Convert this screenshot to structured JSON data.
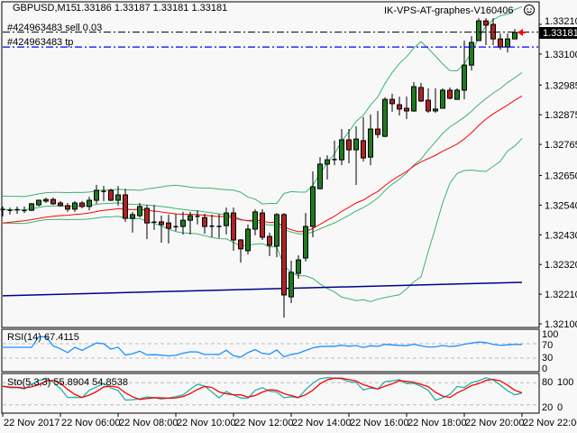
{
  "header": {
    "symbol": "GBPUSD,M15",
    "ohlc": "1.33186 1.33187 1.33181 1.33181",
    "expert": "IK-VPS-AT-graphes-V160406",
    "expert_icon": "smiley-icon"
  },
  "orders": {
    "sell_label": "#424963483 sell 0.03",
    "sell_price": 1.33181,
    "tp_label": "#424963483 tp",
    "tp_price": 1.33126
  },
  "current_price": "1.33181",
  "colors": {
    "background": "#f8f8f8",
    "bull": "#1f7a1f",
    "bear": "#b22222",
    "bands": "#3cb371",
    "ma_fast": "#ff0000",
    "ma_long": "#00008b",
    "rsi": "#1e90ff",
    "stoch_main": "#20b2aa",
    "stoch_signal": "#ff0000",
    "tp_line": "#0000ff"
  },
  "price_axis": [
    "1.33210",
    "1.33100",
    "1.32985",
    "1.32875",
    "1.32765",
    "1.32650",
    "1.32540",
    "1.32430",
    "1.32320",
    "1.32210",
    "1.32100"
  ],
  "time_axis": [
    "22 Nov 2017",
    "22 Nov 06:00",
    "22 Nov 08:00",
    "22 Nov 10:00",
    "22 Nov 12:00",
    "22 Nov 14:00",
    "22 Nov 16:00",
    "22 Nov 18:00",
    "22 Nov 20:00",
    "22 Nov 22:00"
  ],
  "rsi": {
    "label": "RSI(14) 67.4115",
    "levels": [
      "100",
      "70",
      "30",
      "0"
    ]
  },
  "stoch": {
    "label": "Sto(5,3,3) 55.8904 54.8538",
    "levels": [
      "100",
      "80",
      "20",
      "0"
    ]
  },
  "ma_long": {
    "start": 1.32204,
    "end": 1.32254
  },
  "candles": [
    [
      1.32521,
      1.32535,
      1.32498,
      1.32524
    ],
    [
      1.32522,
      1.32531,
      1.32505,
      1.32521
    ],
    [
      1.32521,
      1.32535,
      1.32508,
      1.32523
    ],
    [
      1.32518,
      1.32535,
      1.32511,
      1.3252
    ],
    [
      1.32521,
      1.32548,
      1.32518,
      1.32545
    ],
    [
      1.32541,
      1.32561,
      1.32535,
      1.32558
    ],
    [
      1.32555,
      1.32568,
      1.32548,
      1.32561
    ],
    [
      1.32561,
      1.32568,
      1.32541,
      1.32545
    ],
    [
      1.32548,
      1.32555,
      1.32535,
      1.32538
    ],
    [
      1.32538,
      1.32548,
      1.32515,
      1.32525
    ],
    [
      1.32525,
      1.32555,
      1.32515,
      1.32548
    ],
    [
      1.32548,
      1.32555,
      1.32528,
      1.32535
    ],
    [
      1.32535,
      1.32571,
      1.32521,
      1.32558
    ],
    [
      1.32558,
      1.32615,
      1.32545,
      1.32595
    ],
    [
      1.32595,
      1.32611,
      1.32555,
      1.32591
    ],
    [
      1.32595,
      1.32601,
      1.32555,
      1.32558
    ],
    [
      1.32558,
      1.32611,
      1.32538,
      1.32578
    ],
    [
      1.32578,
      1.32601,
      1.32478,
      1.32491
    ],
    [
      1.32491,
      1.32515,
      1.32438,
      1.32505
    ],
    [
      1.32501,
      1.32548,
      1.32494,
      1.32535
    ],
    [
      1.32528,
      1.32541,
      1.32414,
      1.32474
    ],
    [
      1.32478,
      1.32541,
      1.32448,
      1.32477
    ],
    [
      1.32478,
      1.32501,
      1.32401,
      1.32468
    ],
    [
      1.32474,
      1.32505,
      1.32398,
      1.32454
    ],
    [
      1.32461,
      1.32508,
      1.32444,
      1.3246
    ],
    [
      1.32461,
      1.32515,
      1.32431,
      1.32484
    ],
    [
      1.32484,
      1.32515,
      1.32431,
      1.32501
    ],
    [
      1.32498,
      1.32521,
      1.32468,
      1.32499
    ],
    [
      1.32494,
      1.32508,
      1.32434,
      1.32461
    ],
    [
      1.32461,
      1.32505,
      1.32421,
      1.32462
    ],
    [
      1.3246,
      1.32508,
      1.32418,
      1.32461
    ],
    [
      1.32464,
      1.32531,
      1.32431,
      1.32511
    ],
    [
      1.32511,
      1.32531,
      1.32371,
      1.32411
    ],
    [
      1.32411,
      1.32414,
      1.32327,
      1.32378
    ],
    [
      1.32371,
      1.32468,
      1.32357,
      1.32451
    ],
    [
      1.32451,
      1.32525,
      1.32428,
      1.32515
    ],
    [
      1.32511,
      1.32525,
      1.32411,
      1.32421
    ],
    [
      1.32424,
      1.32438,
      1.32351,
      1.32391
    ],
    [
      1.32388,
      1.32511,
      1.32347,
      1.32505
    ],
    [
      1.32505,
      1.32511,
      1.32123,
      1.32207
    ],
    [
      1.322,
      1.32334,
      1.32177,
      1.32291
    ],
    [
      1.32287,
      1.32354,
      1.32267,
      1.32337
    ],
    [
      1.32344,
      1.32511,
      1.32331,
      1.32461
    ],
    [
      1.32461,
      1.32665,
      1.32421,
      1.32608
    ],
    [
      1.32601,
      1.32718,
      1.32598,
      1.32692
    ],
    [
      1.32692,
      1.32725,
      1.32635,
      1.32708
    ],
    [
      1.32708,
      1.32779,
      1.32688,
      1.32709
    ],
    [
      1.32708,
      1.32822,
      1.32688,
      1.32782
    ],
    [
      1.32782,
      1.32822,
      1.32695,
      1.32745
    ],
    [
      1.32745,
      1.32832,
      1.32615,
      1.32785
    ],
    [
      1.32779,
      1.32866,
      1.32702,
      1.32715
    ],
    [
      1.32718,
      1.32876,
      1.32688,
      1.32822
    ],
    [
      1.32822,
      1.32889,
      1.32789,
      1.32802
    ],
    [
      1.32795,
      1.32939,
      1.32792,
      1.32932
    ],
    [
      1.32932,
      1.32953,
      1.32886,
      1.32916
    ],
    [
      1.32912,
      1.32942,
      1.32872,
      1.32896
    ],
    [
      1.32899,
      1.32942,
      1.32859,
      1.32889
    ],
    [
      1.32889,
      1.32996,
      1.32886,
      1.32979
    ],
    [
      1.32976,
      1.32993,
      1.32922,
      1.32926
    ],
    [
      1.32929,
      1.32973,
      1.32882,
      1.32889
    ],
    [
      1.32889,
      1.32973,
      1.32882,
      1.32896
    ],
    [
      1.32899,
      1.32973,
      1.32899,
      1.32966
    ],
    [
      1.32966,
      1.32976,
      1.32932,
      1.32936
    ],
    [
      1.32932,
      1.32973,
      1.32932,
      1.32966
    ],
    [
      1.32966,
      1.3315,
      1.32932,
      1.33059
    ],
    [
      1.33059,
      1.33166,
      1.33039,
      1.33143
    ],
    [
      1.3315,
      1.33233,
      1.3315,
      1.33223
    ],
    [
      1.33223,
      1.33233,
      1.33133,
      1.33207
    ],
    [
      1.3321,
      1.33233,
      1.33133,
      1.33156
    ],
    [
      1.33156,
      1.33176,
      1.33116,
      1.33126
    ],
    [
      1.33126,
      1.33176,
      1.33106,
      1.33156
    ],
    [
      1.33156,
      1.33193,
      1.33156,
      1.3318
    ],
    [
      1.33186,
      1.33187,
      1.33181,
      1.33181
    ]
  ]
}
